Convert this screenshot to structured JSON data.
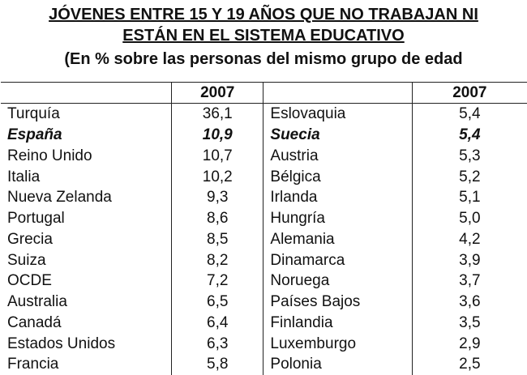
{
  "title_line1": "JÓVENES ENTRE 15 Y 19 AÑOS QUE NO TRABAJAN NI",
  "title_line2": "ESTÁN EN EL SISTEMA EDUCATIVO",
  "subtitle": "(En % sobre las personas del mismo grupo de edad",
  "header": {
    "year_left": "2007",
    "year_right": "2007"
  },
  "rows": [
    {
      "left_country": "Turquía",
      "left_value": "36,1",
      "right_country": "Eslovaquia",
      "right_value": "5,4"
    },
    {
      "left_country": "España",
      "left_value": "10,9",
      "right_country": "Suecia",
      "right_value": "5,4"
    },
    {
      "left_country": "Reino Unido",
      "left_value": "10,7",
      "right_country": "Austria",
      "right_value": "5,3"
    },
    {
      "left_country": "Italia",
      "left_value": "10,2",
      "right_country": "Bélgica",
      "right_value": "5,2"
    },
    {
      "left_country": "Nueva Zelanda",
      "left_value": "9,3",
      "right_country": "Irlanda",
      "right_value": "5,1"
    },
    {
      "left_country": "Portugal",
      "left_value": "8,6",
      "right_country": "Hungría",
      "right_value": "5,0"
    },
    {
      "left_country": "Grecia",
      "left_value": "8,5",
      "right_country": "Alemania",
      "right_value": "4,2"
    },
    {
      "left_country": "Suiza",
      "left_value": "8,2",
      "right_country": "Dinamarca",
      "right_value": "3,9"
    },
    {
      "left_country": "OCDE",
      "left_value": "7,2",
      "right_country": "Noruega",
      "right_value": "3,7"
    },
    {
      "left_country": "Australia",
      "left_value": "6,5",
      "right_country": "Países Bajos",
      "right_value": "3,6"
    },
    {
      "left_country": "Canadá",
      "left_value": "6,4",
      "right_country": "Finlandia",
      "right_value": "3,5"
    },
    {
      "left_country": "Estados Unidos",
      "left_value": "6,3",
      "right_country": "Luxemburgo",
      "right_value": "2,9"
    },
    {
      "left_country": "Francia",
      "left_value": "5,8",
      "right_country": "Polonia",
      "right_value": "2,5"
    }
  ]
}
